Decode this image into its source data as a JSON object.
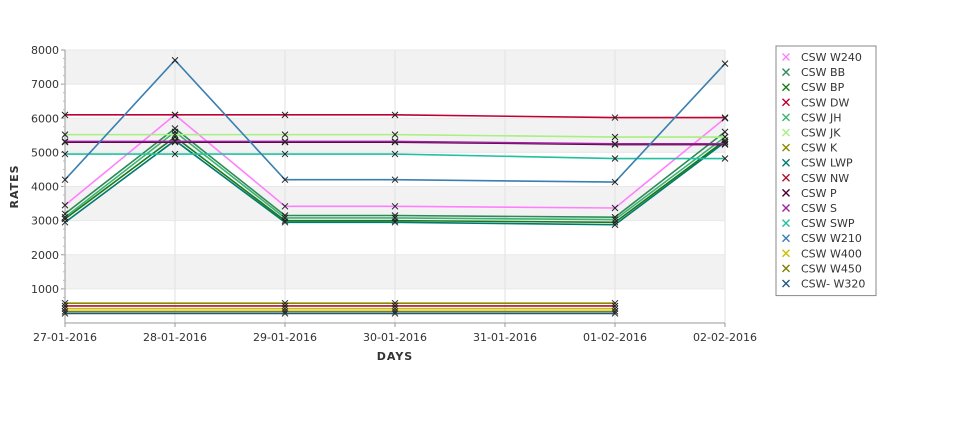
{
  "chart_data": {
    "type": "line",
    "xlabel": "DAYS",
    "ylabel": "RATES",
    "x": [
      "27-01-2016",
      "28-01-2016",
      "29-01-2016",
      "30-01-2016",
      "31-01-2016",
      "01-02-2016",
      "02-02-2016"
    ],
    "ylim": [
      0,
      8000
    ],
    "yticks": [
      1000,
      2000,
      3000,
      4000,
      5000,
      6000,
      7000,
      8000
    ],
    "grid": true,
    "legend_position": "right",
    "series": [
      {
        "name": "CSW  W240",
        "color": "#ff80ff",
        "x": [
          "27-01-2016",
          "28-01-2016",
          "29-01-2016",
          "30-01-2016",
          "01-02-2016",
          "02-02-2016"
        ],
        "values": [
          3450,
          6100,
          3420,
          3420,
          3370,
          6000
        ]
      },
      {
        "name": "CSW BB",
        "color": "#2e8b57",
        "x": [
          "27-01-2016",
          "28-01-2016",
          "29-01-2016",
          "30-01-2016",
          "01-02-2016",
          "02-02-2016"
        ],
        "values": [
          3200,
          5700,
          3150,
          3150,
          3100,
          5600
        ]
      },
      {
        "name": "CSW BP",
        "color": "#1a7a1a",
        "x": [
          "27-01-2016",
          "28-01-2016",
          "29-01-2016",
          "30-01-2016",
          "01-02-2016",
          "02-02-2016"
        ],
        "values": [
          3050,
          5450,
          3000,
          3000,
          2950,
          5350
        ]
      },
      {
        "name": "CSW DW",
        "color": "#c00030",
        "x": [
          "27-01-2016",
          "28-01-2016",
          "29-01-2016",
          "30-01-2016",
          "01-02-2016",
          "02-02-2016"
        ],
        "values": [
          6100,
          6100,
          6100,
          6100,
          6020,
          6020
        ]
      },
      {
        "name": "CSW JH",
        "color": "#3cb371",
        "x": [
          "27-01-2016",
          "28-01-2016",
          "29-01-2016",
          "30-01-2016",
          "01-02-2016",
          "02-02-2016"
        ],
        "values": [
          3100,
          5600,
          3080,
          3080,
          3030,
          5450
        ]
      },
      {
        "name": "CSW JK",
        "color": "#a8f080",
        "x": [
          "27-01-2016",
          "28-01-2016",
          "29-01-2016",
          "30-01-2016",
          "01-02-2016",
          "02-02-2016"
        ],
        "values": [
          5520,
          5520,
          5520,
          5520,
          5450,
          5450
        ]
      },
      {
        "name": "CSW K",
        "color": "#8b8b00",
        "x": [
          "27-01-2016",
          "29-01-2016",
          "30-01-2016",
          "01-02-2016"
        ],
        "values": [
          580,
          580,
          580,
          580
        ]
      },
      {
        "name": "CSW LWP",
        "color": "#007a6e",
        "x": [
          "27-01-2016",
          "28-01-2016",
          "29-01-2016",
          "30-01-2016",
          "01-02-2016",
          "02-02-2016"
        ],
        "values": [
          2950,
          5350,
          2950,
          2950,
          2880,
          5300
        ]
      },
      {
        "name": "CSW NW",
        "color": "#b01030",
        "x": [
          "27-01-2016",
          "29-01-2016",
          "30-01-2016",
          "01-02-2016"
        ],
        "values": [
          500,
          500,
          500,
          500
        ]
      },
      {
        "name": "CSW P",
        "color": "#4a0030",
        "x": [
          "27-01-2016",
          "28-01-2016",
          "29-01-2016",
          "30-01-2016",
          "01-02-2016",
          "02-02-2016"
        ],
        "values": [
          5300,
          5300,
          5300,
          5300,
          5230,
          5230
        ]
      },
      {
        "name": "CSW S",
        "color": "#a020a0",
        "x": [
          "27-01-2016",
          "28-01-2016",
          "29-01-2016",
          "30-01-2016",
          "01-02-2016",
          "02-02-2016"
        ],
        "values": [
          5320,
          5320,
          5320,
          5320,
          5250,
          5250
        ]
      },
      {
        "name": "CSW SWP",
        "color": "#20c0a0",
        "x": [
          "27-01-2016",
          "28-01-2016",
          "29-01-2016",
          "30-01-2016",
          "01-02-2016",
          "02-02-2016"
        ],
        "values": [
          4950,
          4950,
          4950,
          4950,
          4820,
          4820
        ]
      },
      {
        "name": "CSW W210",
        "color": "#3a7fb0",
        "x": [
          "27-01-2016",
          "28-01-2016",
          "29-01-2016",
          "30-01-2016",
          "01-02-2016",
          "02-02-2016"
        ],
        "values": [
          4200,
          7700,
          4200,
          4200,
          4130,
          7600
        ]
      },
      {
        "name": "CSW W400",
        "color": "#c8c000",
        "x": [
          "27-01-2016",
          "29-01-2016",
          "30-01-2016",
          "01-02-2016"
        ],
        "values": [
          420,
          420,
          420,
          420
        ]
      },
      {
        "name": "CSW W450",
        "color": "#808000",
        "x": [
          "27-01-2016",
          "29-01-2016",
          "30-01-2016",
          "01-02-2016"
        ],
        "values": [
          340,
          340,
          340,
          340
        ]
      },
      {
        "name": "CSW- W320",
        "color": "#205a7a",
        "x": [
          "27-01-2016",
          "29-01-2016",
          "30-01-2016",
          "01-02-2016"
        ],
        "values": [
          280,
          280,
          280,
          280
        ]
      }
    ]
  }
}
